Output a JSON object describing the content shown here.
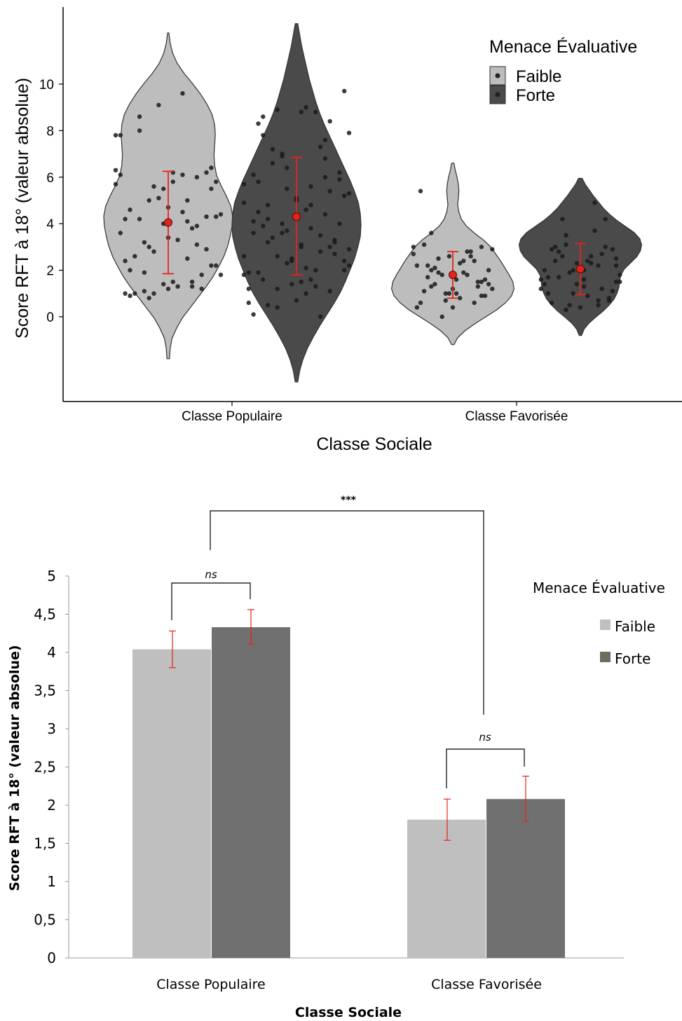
{
  "colors": {
    "violin_faible": "#bdbdbd",
    "violin_forte": "#4a4a4a",
    "bar_faible": "#bfbfbf",
    "bar_forte": "#707070",
    "error": "#e0261b",
    "legend_forte_bar": "#6e6e5e"
  },
  "chart_data": [
    {
      "type": "violin",
      "ylabel": "Score RFT à 18° (valeur absolue)",
      "xlabel": "Classe Sociale",
      "categories": [
        "Classe Populaire",
        "Classe Favorisée"
      ],
      "yticks": [
        "0",
        "2",
        "4",
        "6",
        "8",
        "10"
      ],
      "ylim": [
        -3.7,
        12.8
      ],
      "legend": {
        "title": "Menace Évaluative",
        "placement": "top-right",
        "entries": [
          "Faible",
          "Forte"
        ]
      },
      "series": [
        {
          "name": "Faible",
          "mean": [
            4.05,
            1.8
          ],
          "err_low": [
            1.85,
            0.8
          ],
          "err_high": [
            6.25,
            2.8
          ],
          "range": [
            [
              -1.8,
              12.2
            ],
            [
              -1.2,
              6.6
            ]
          ],
          "points": [
            [
              [
                7.8,
                9.6,
                8.0,
                6.2,
                5.5,
                6.1,
                4.1,
                3.2,
                2.2,
                1.2,
                1.0,
                1.3,
                5.0,
                5.8,
                6.2,
                4.6,
                3.9,
                2.8,
                1.8,
                1.3,
                1.0,
                1.2,
                5.1,
                5.7,
                6.1,
                8.6,
                4.3,
                4.0,
                3.6,
                2.5,
                1.9,
                5.5,
                4.7,
                4.2,
                3.8,
                3.0,
                2.2,
                1.5,
                0.9,
                6.0,
                5.6,
                4.4,
                3.3,
                2.6,
                1.8,
                9.1,
                6.3,
                4.5,
                4.2,
                2.9,
                1.4,
                7.8,
                5.0,
                1.1,
                6.4,
                3.4,
                2.4,
                1.5,
                0.8,
                4.3,
                5.8,
                2.0,
                3.1,
                1.0
              ]
            ],
            [
              [
                3.6,
                3.0,
                2.6,
                2.2,
                1.8,
                1.4,
                0.9,
                0.4,
                5.4,
                2.8,
                2.5,
                2.0,
                1.6,
                1.1,
                0.6,
                0.0,
                2.9,
                2.3,
                1.7,
                1.3,
                0.7,
                3.0,
                2.4,
                2.0,
                1.5,
                1.0,
                0.4,
                2.8,
                2.1,
                1.6,
                1.2,
                0.6,
                2.6,
                1.9,
                1.4,
                1.0,
                3.1,
                2.4,
                1.8,
                1.2,
                0.8,
                2.2,
                1.5,
                1.0,
                2.7,
                1.9,
                1.3,
                0.9
              ]
            ]
          ]
        },
        {
          "name": "Forte",
          "mean": [
            4.3,
            2.05
          ],
          "err_low": [
            1.8,
            0.95
          ],
          "err_high": [
            6.85,
            3.15
          ],
          "range": [
            [
              -2.8,
              12.6
            ],
            [
              -0.8,
              5.95
            ]
          ],
          "points": [
            [
              [
                0.7,
                0.1,
                0.0,
                1.2,
                2.4,
                3.1,
                4.5,
                6.0,
                7.0,
                7.9,
                9.0,
                8.6,
                8.4,
                5.5,
                4.9,
                3.8,
                3.2,
                2.7,
                1.4,
                0.6,
                2.0,
                3.4,
                4.0,
                5.1,
                6.1,
                7.3,
                8.9,
                9.7,
                8.8,
                5.8,
                4.4,
                3.6,
                2.9,
                2.1,
                1.6,
                1.1,
                6.4,
                5.7,
                4.8,
                4.2,
                3.3,
                2.5,
                1.9,
                1.3,
                6.6,
                5.9,
                5.0,
                4.1,
                3.5,
                2.6,
                2.0,
                1.5,
                8.3,
                7.6,
                6.9,
                5.3,
                4.6,
                3.9,
                3.0,
                2.3,
                1.8,
                5.6,
                4.8,
                3.2,
                2.4,
                1.2,
                8.8,
                7.2,
                6.2,
                4.3,
                3.6,
                2.8,
                0.4,
                5.2,
                3.0,
                1.9,
                6.8,
                4.0,
                2.2,
                1.0,
                7.8,
                5.4,
                3.7,
                2.6,
                1.6,
                0.5
              ]
            ],
            [
              [
                0.7,
                0.3,
                1.5,
                2.0,
                2.9,
                1.2,
                0.5,
                1.8,
                2.4,
                3.0,
                4.2,
                1.0,
                1.6,
                2.3,
                2.8,
                0.8,
                1.4,
                2.0,
                3.7,
                2.6,
                1.1,
                0.4,
                1.7,
                2.2,
                3.1,
                2.5,
                1.3,
                0.6,
                2.7,
                1.9,
                1.5,
                0.9,
                2.4,
                3.0,
                2.0,
                1.2,
                2.6,
                1.7,
                0.7,
                2.3,
                1.4,
                4.9,
                4.2,
                2.9,
                2.0,
                1.0,
                0.5,
                3.5,
                2.2,
                1.6
              ]
            ]
          ]
        }
      ]
    },
    {
      "type": "bar",
      "ylabel": "Score RFT à 18° (valeur absolue)",
      "xlabel": "Classe Sociale",
      "categories": [
        "Classe Populaire",
        "Classe Favorisée"
      ],
      "yticks": [
        "0",
        "0,5",
        "1",
        "1,5",
        "2",
        "2,5",
        "3",
        "3,5",
        "4",
        "4,5",
        "5"
      ],
      "ylim": [
        0,
        5
      ],
      "legend": {
        "title": "Menace Évaluative",
        "placement": "right",
        "entries": [
          "Faible",
          "Forte"
        ]
      },
      "series": [
        {
          "name": "Faible",
          "values": [
            4.04,
            1.81
          ],
          "err_low": [
            3.8,
            1.54
          ],
          "err_high": [
            4.28,
            2.08
          ]
        },
        {
          "name": "Forte",
          "values": [
            4.33,
            2.08
          ],
          "err_low": [
            4.11,
            1.79
          ],
          "err_high": [
            4.56,
            2.38
          ]
        }
      ],
      "annotations": {
        "overall": "***",
        "within_populaire": "ns",
        "within_favorisee": "ns"
      }
    }
  ]
}
